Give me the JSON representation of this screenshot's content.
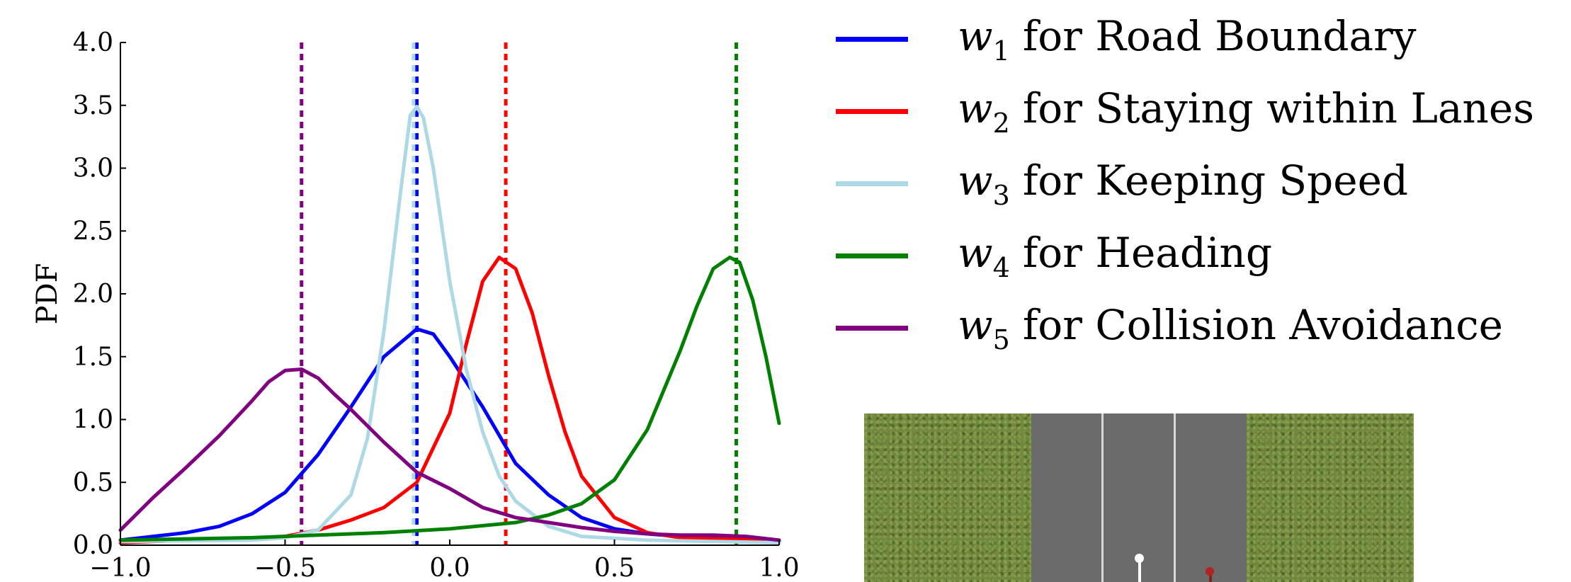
{
  "chart_data": {
    "type": "line",
    "ylabel": "PDF",
    "xlabel": "",
    "xlim": [
      -1.0,
      1.0
    ],
    "ylim": [
      0.0,
      4.0
    ],
    "xticks": [
      "−1.0",
      "−0.5",
      "0.0",
      "0.5",
      "1.0"
    ],
    "xtick_values": [
      -1.0,
      -0.5,
      0.0,
      0.5,
      1.0
    ],
    "yticks": [
      "0.0",
      "0.5",
      "1.0",
      "1.5",
      "2.0",
      "2.5",
      "3.0",
      "3.5",
      "4.0"
    ],
    "ytick_values": [
      0.0,
      0.5,
      1.0,
      1.5,
      2.0,
      2.5,
      3.0,
      3.5,
      4.0
    ],
    "spines": "left-bottom",
    "legend_placement": "right",
    "series": [
      {
        "name_var": "w",
        "name_sub": "1",
        "name_text": "for Road Boundary",
        "color": "#0000ff",
        "vline": -0.1,
        "x": [
          -1.0,
          -0.9,
          -0.8,
          -0.7,
          -0.6,
          -0.5,
          -0.4,
          -0.3,
          -0.2,
          -0.1,
          -0.05,
          0.0,
          0.1,
          0.2,
          0.3,
          0.4,
          0.5,
          0.6,
          0.7,
          0.8,
          0.9,
          1.0
        ],
        "y": [
          0.04,
          0.07,
          0.1,
          0.15,
          0.25,
          0.42,
          0.72,
          1.1,
          1.5,
          1.72,
          1.68,
          1.5,
          1.1,
          0.65,
          0.4,
          0.22,
          0.13,
          0.09,
          0.07,
          0.07,
          0.06,
          0.03
        ]
      },
      {
        "name_var": "w",
        "name_sub": "2",
        "name_text": "for Staying within Lanes",
        "color": "#ff0000",
        "vline": 0.17,
        "x": [
          -1.0,
          -0.8,
          -0.6,
          -0.5,
          -0.4,
          -0.3,
          -0.2,
          -0.1,
          0.0,
          0.05,
          0.1,
          0.15,
          0.2,
          0.25,
          0.3,
          0.35,
          0.4,
          0.5,
          0.6,
          0.7,
          0.8,
          0.9,
          1.0
        ],
        "y": [
          0.02,
          0.04,
          0.05,
          0.07,
          0.12,
          0.2,
          0.3,
          0.5,
          1.05,
          1.6,
          2.1,
          2.29,
          2.2,
          1.85,
          1.35,
          0.9,
          0.55,
          0.22,
          0.1,
          0.06,
          0.05,
          0.05,
          0.02
        ]
      },
      {
        "name_var": "w",
        "name_sub": "3",
        "name_text": "for Keeping Speed",
        "color": "#add8e6",
        "vline": -0.11,
        "x": [
          -1.0,
          -0.6,
          -0.5,
          -0.4,
          -0.3,
          -0.25,
          -0.2,
          -0.15,
          -0.12,
          -0.1,
          -0.08,
          -0.05,
          0.0,
          0.05,
          0.1,
          0.15,
          0.2,
          0.3,
          0.4,
          0.6,
          0.8,
          1.0
        ],
        "y": [
          0.03,
          0.04,
          0.06,
          0.12,
          0.4,
          0.85,
          1.7,
          2.8,
          3.42,
          3.49,
          3.4,
          3.0,
          2.1,
          1.4,
          0.9,
          0.55,
          0.35,
          0.15,
          0.07,
          0.04,
          0.03,
          0.02
        ]
      },
      {
        "name_var": "w",
        "name_sub": "4",
        "name_text": "for Heading",
        "color": "#008000",
        "vline": 0.87,
        "x": [
          -1.0,
          -0.8,
          -0.6,
          -0.4,
          -0.2,
          0.0,
          0.2,
          0.3,
          0.4,
          0.5,
          0.6,
          0.7,
          0.75,
          0.8,
          0.85,
          0.88,
          0.92,
          0.96,
          1.0
        ],
        "y": [
          0.04,
          0.05,
          0.06,
          0.08,
          0.1,
          0.13,
          0.18,
          0.24,
          0.33,
          0.52,
          0.92,
          1.55,
          1.9,
          2.2,
          2.29,
          2.25,
          1.95,
          1.5,
          0.97
        ]
      },
      {
        "name_var": "w",
        "name_sub": "5",
        "name_text": "for Collision Avoidance",
        "color": "#800080",
        "vline": -0.45,
        "x": [
          -1.0,
          -0.9,
          -0.8,
          -0.7,
          -0.6,
          -0.55,
          -0.5,
          -0.45,
          -0.4,
          -0.35,
          -0.3,
          -0.2,
          -0.1,
          0.0,
          0.1,
          0.2,
          0.3,
          0.4,
          0.5,
          0.6,
          0.7,
          0.8,
          0.9,
          1.0
        ],
        "y": [
          0.12,
          0.38,
          0.62,
          0.87,
          1.15,
          1.3,
          1.39,
          1.4,
          1.33,
          1.2,
          1.08,
          0.82,
          0.58,
          0.45,
          0.3,
          0.22,
          0.18,
          0.14,
          0.11,
          0.09,
          0.08,
          0.08,
          0.07,
          0.04
        ]
      }
    ]
  },
  "scene": {
    "grass_color": "#6f8a3c",
    "road_color": "#6b6b6b",
    "lane_line_color": "#d8d8d8",
    "agents": [
      {
        "name": "ego-car",
        "color": "#ffffff"
      },
      {
        "name": "other-car",
        "color": "#b22222"
      }
    ]
  }
}
